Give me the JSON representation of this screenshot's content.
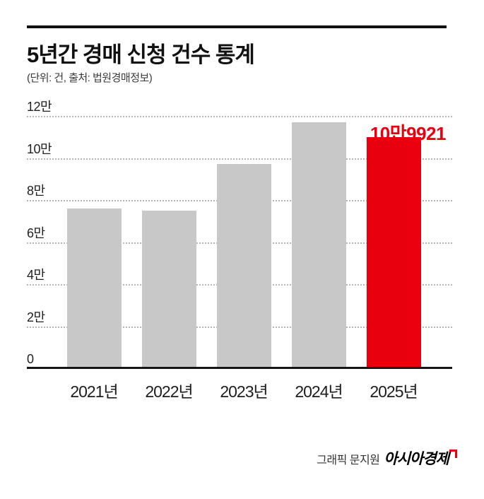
{
  "colors": {
    "accent_red": "#e8000f",
    "bar_gray": "#c8c8c8",
    "gridline": "#b5b5b5",
    "text": "#111111"
  },
  "header": {
    "title": "5년간 경매 신청 건수 통계",
    "subtitle": "(단위: 건, 출처: 법원경매정보)"
  },
  "footer": {
    "credit": "그래픽 문지원",
    "brand": "아시아경제"
  },
  "chart_data": {
    "type": "bar",
    "title": "5년간 경매 신청 건수 통계",
    "unit_note": "(단위: 건, 출처: 법원경매정보)",
    "categories": [
      "2021년",
      "2022년",
      "2023년",
      "2024년",
      "2025년"
    ],
    "values": [
      76000,
      75000,
      97000,
      117000,
      109921
    ],
    "bar_colors": [
      "#c8c8c8",
      "#c8c8c8",
      "#c8c8c8",
      "#c8c8c8",
      "#e8000f"
    ],
    "ylim": [
      0,
      120000
    ],
    "yticks": [
      "12만",
      "10만",
      "8만",
      "6만",
      "4만",
      "2만",
      "0"
    ],
    "ytick_values": [
      120000,
      100000,
      80000,
      60000,
      40000,
      20000,
      0
    ],
    "grid": "dotted-horizontal",
    "legend": "none",
    "annotation": {
      "text": "10만9921",
      "value": 109921,
      "category": "2025년",
      "color": "#e8000f"
    }
  }
}
